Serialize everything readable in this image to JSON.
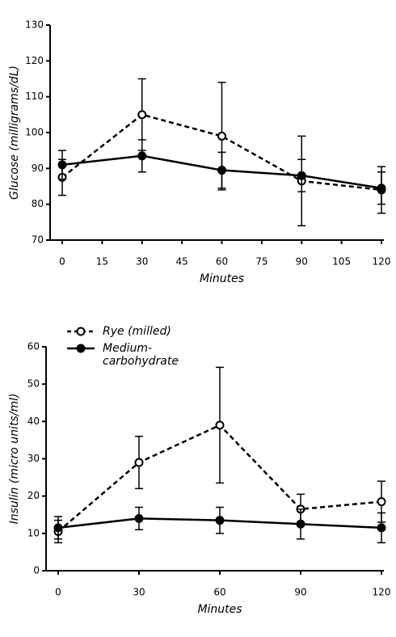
{
  "chart_data": [
    {
      "type": "line",
      "x_label": "Minutes",
      "y_label": "Glucose (milligrams/dL)",
      "x": [
        0,
        30,
        60,
        90,
        120
      ],
      "xlim": [
        0,
        120
      ],
      "xticks": [
        0,
        15,
        30,
        45,
        60,
        75,
        90,
        105,
        120
      ],
      "ylim": [
        70,
        130
      ],
      "yticks": [
        70,
        80,
        90,
        100,
        110,
        120,
        130
      ],
      "series": [
        {
          "color": "#000000",
          "dashed": true,
          "marker": "open",
          "values": [
            87.5,
            105,
            99,
            86.5,
            84
          ],
          "errors": [
            5,
            10,
            15,
            12.5,
            6.5
          ]
        },
        {
          "color": "#000000",
          "dashed": false,
          "marker": "filled",
          "values": [
            91,
            93.5,
            89.5,
            88,
            84.5
          ],
          "errors": [
            4,
            4.5,
            5,
            4.5,
            4.5
          ]
        }
      ]
    },
    {
      "type": "line",
      "x_label": "Minutes",
      "y_label": "Insulin (micro units/ml)",
      "x": [
        0,
        30,
        60,
        90,
        120
      ],
      "xlim": [
        0,
        120
      ],
      "xticks": [
        0,
        30,
        60,
        90,
        120
      ],
      "ylim": [
        0,
        60
      ],
      "yticks": [
        0,
        10,
        20,
        30,
        40,
        50,
        60
      ],
      "legend": "top-left",
      "series": [
        {
          "name": "Rye (milled)",
          "color": "#000000",
          "dashed": true,
          "marker": "open",
          "values": [
            10.5,
            29,
            39,
            16.5,
            18.5
          ],
          "errors": [
            3,
            7,
            15.5,
            4,
            5.5
          ]
        },
        {
          "name": "Medium-carbohydrate",
          "color": "#000000",
          "dashed": false,
          "marker": "filled",
          "values": [
            11.5,
            14,
            13.5,
            12.5,
            11.5
          ],
          "errors": [
            3,
            3,
            3.5,
            4,
            4
          ]
        }
      ]
    }
  ]
}
